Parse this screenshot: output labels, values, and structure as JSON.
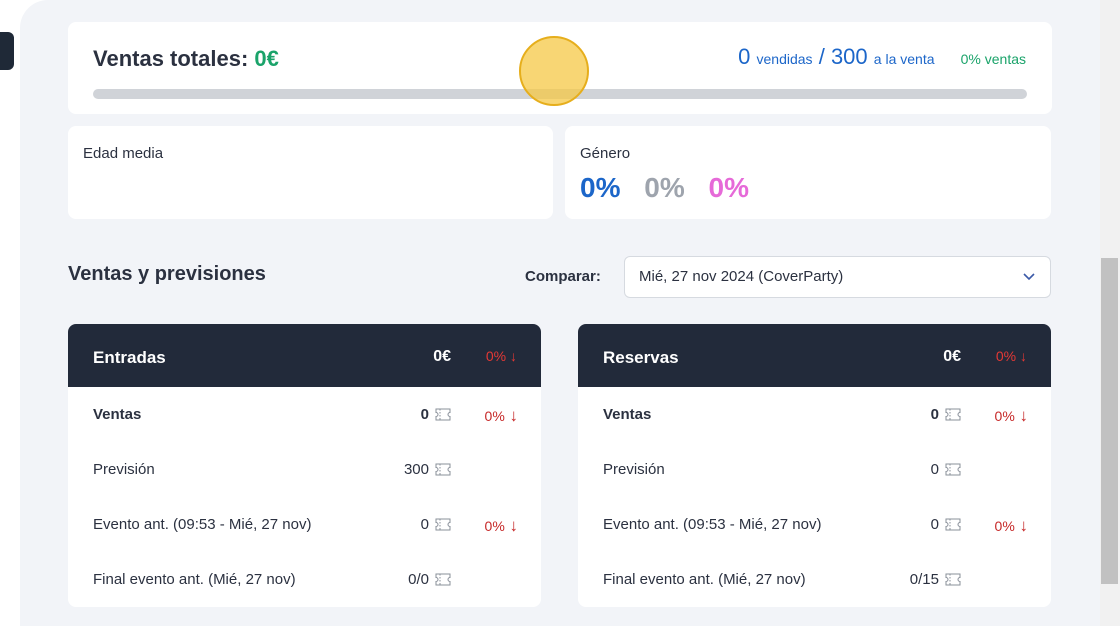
{
  "sales_summary": {
    "title": "Ventas totales:",
    "amount": "0€",
    "sold": "0",
    "sold_label": "vendidas",
    "separator": "/",
    "available": "300",
    "available_label": "a la venta",
    "sales_pct": "0% ventas",
    "progress_fraction": 0
  },
  "age_card": {
    "label": "Edad media"
  },
  "gender_card": {
    "label": "Género",
    "values": [
      "0%",
      "0%",
      "0%"
    ],
    "colors": [
      "#1c66c9",
      "#9ea4ad",
      "#e66ad8"
    ]
  },
  "forecast_section": {
    "title": "Ventas y previsiones",
    "compare_label": "Comparar:",
    "compare_selected": "Mié, 27 nov 2024 (CoverParty)"
  },
  "tables": [
    {
      "title": "Entradas",
      "total": "0€",
      "delta": "0%",
      "rows": [
        {
          "label": "Ventas",
          "value": "0",
          "delta": "0%"
        },
        {
          "label": "Previsión",
          "value": "300",
          "delta": ""
        },
        {
          "label": "Evento ant. (09:53 - Mié, 27 nov)",
          "value": "0",
          "delta": "0%"
        },
        {
          "label": "Final evento ant. (Mié, 27 nov)",
          "value": "0/0",
          "delta": ""
        }
      ]
    },
    {
      "title": "Reservas",
      "total": "0€",
      "delta": "0%",
      "rows": [
        {
          "label": "Ventas",
          "value": "0",
          "delta": "0%"
        },
        {
          "label": "Previsión",
          "value": "0",
          "delta": ""
        },
        {
          "label": "Evento ant. (09:53 - Mié, 27 nov)",
          "value": "0",
          "delta": "0%"
        },
        {
          "label": "Final evento ant. (Mié, 27 nov)",
          "value": "0/15",
          "delta": ""
        }
      ]
    }
  ],
  "colors": {
    "accent_green": "#1aa36a",
    "accent_blue": "#1c66c9",
    "negative_red": "#c62828",
    "header_dark": "#222a3a"
  }
}
